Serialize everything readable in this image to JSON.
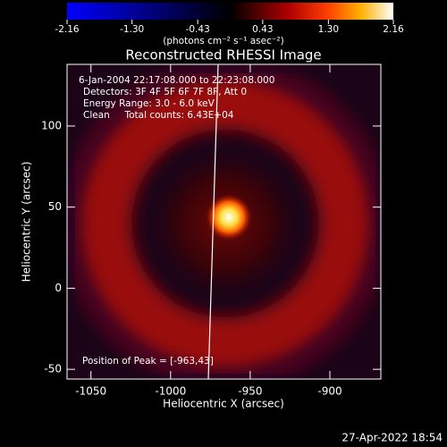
{
  "chart_data": {
    "type": "image",
    "title": "Reconstructed RHESSI Image",
    "xlabel": "Heliocentric X (arcsec)",
    "ylabel": "Heliocentric Y (arcsec)",
    "xlim": [
      -1065,
      -868
    ],
    "ylim": [
      -56,
      138
    ],
    "xticks": [
      -1050,
      -1000,
      -950,
      -900
    ],
    "yticks": [
      -50,
      0,
      50,
      100
    ],
    "colorbar": {
      "label": "(photons cm⁻² s⁻¹ asec⁻²)",
      "clim": [
        -2.16,
        2.16
      ],
      "ticks": [
        -2.16,
        {
          "value": -1.3,
          "label": "-1.30"
        },
        -0.43,
        0.43,
        {
          "value": 1.3,
          "label": "1.30"
        },
        2.16
      ]
    },
    "annotations": [
      "6-Jan-2004 22:17:08.000 to 22:23:08.000",
      "Detectors: 3F 4F 5F 6F 7F 8F, Att 0",
      "Energy Range: 3.0 - 6.0 keV",
      "Clean     Total counts: 6.43E+04"
    ],
    "peak_label": "Position of Peak = [-963,43]",
    "timestamp": "27-Apr-2022 18:54"
  }
}
